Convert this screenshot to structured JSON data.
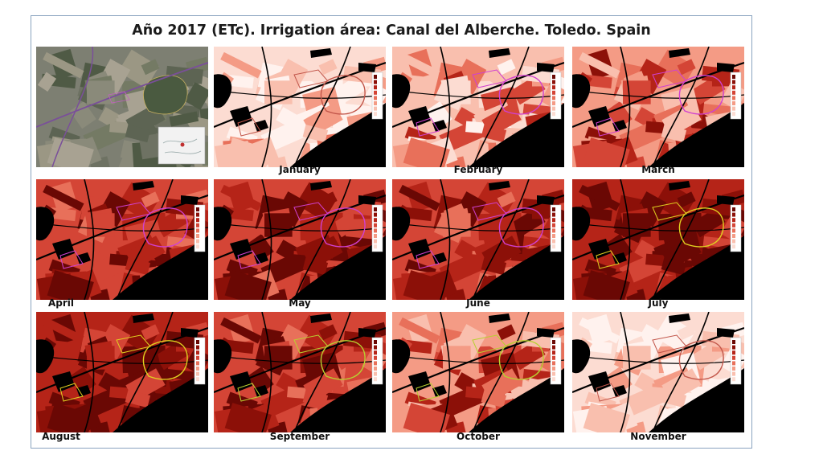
{
  "title": "Año 2017 (ETc). Irrigation área: Canal del Alberche. Toledo. Spain",
  "panels": [
    {
      "kind": "satellite",
      "label": ""
    },
    {
      "kind": "map",
      "label": "January",
      "intensity": 0.15,
      "outline": "#c2564a"
    },
    {
      "kind": "map",
      "label": "February",
      "intensity": 0.35,
      "outline": "#d040d0"
    },
    {
      "kind": "map",
      "label": "March",
      "intensity": 0.55,
      "outline": "#d040d0"
    },
    {
      "kind": "map",
      "label": "April",
      "intensity": 0.85,
      "outline": "#d040d0"
    },
    {
      "kind": "map",
      "label": "May",
      "intensity": 0.9,
      "outline": "#d040d0"
    },
    {
      "kind": "map",
      "label": "June",
      "intensity": 0.78,
      "outline": "#d040d0"
    },
    {
      "kind": "map",
      "label": "July",
      "intensity": 0.97,
      "outline": "#e0d020"
    },
    {
      "kind": "map",
      "label": "August",
      "intensity": 0.95,
      "outline": "#e0d020"
    },
    {
      "kind": "map",
      "label": "September",
      "intensity": 0.82,
      "outline": "#b8d030"
    },
    {
      "kind": "map",
      "label": "October",
      "intensity": 0.5,
      "outline": "#b8d030"
    },
    {
      "kind": "map",
      "label": "November",
      "intensity": 0.12,
      "outline": "#c2564a"
    }
  ]
}
